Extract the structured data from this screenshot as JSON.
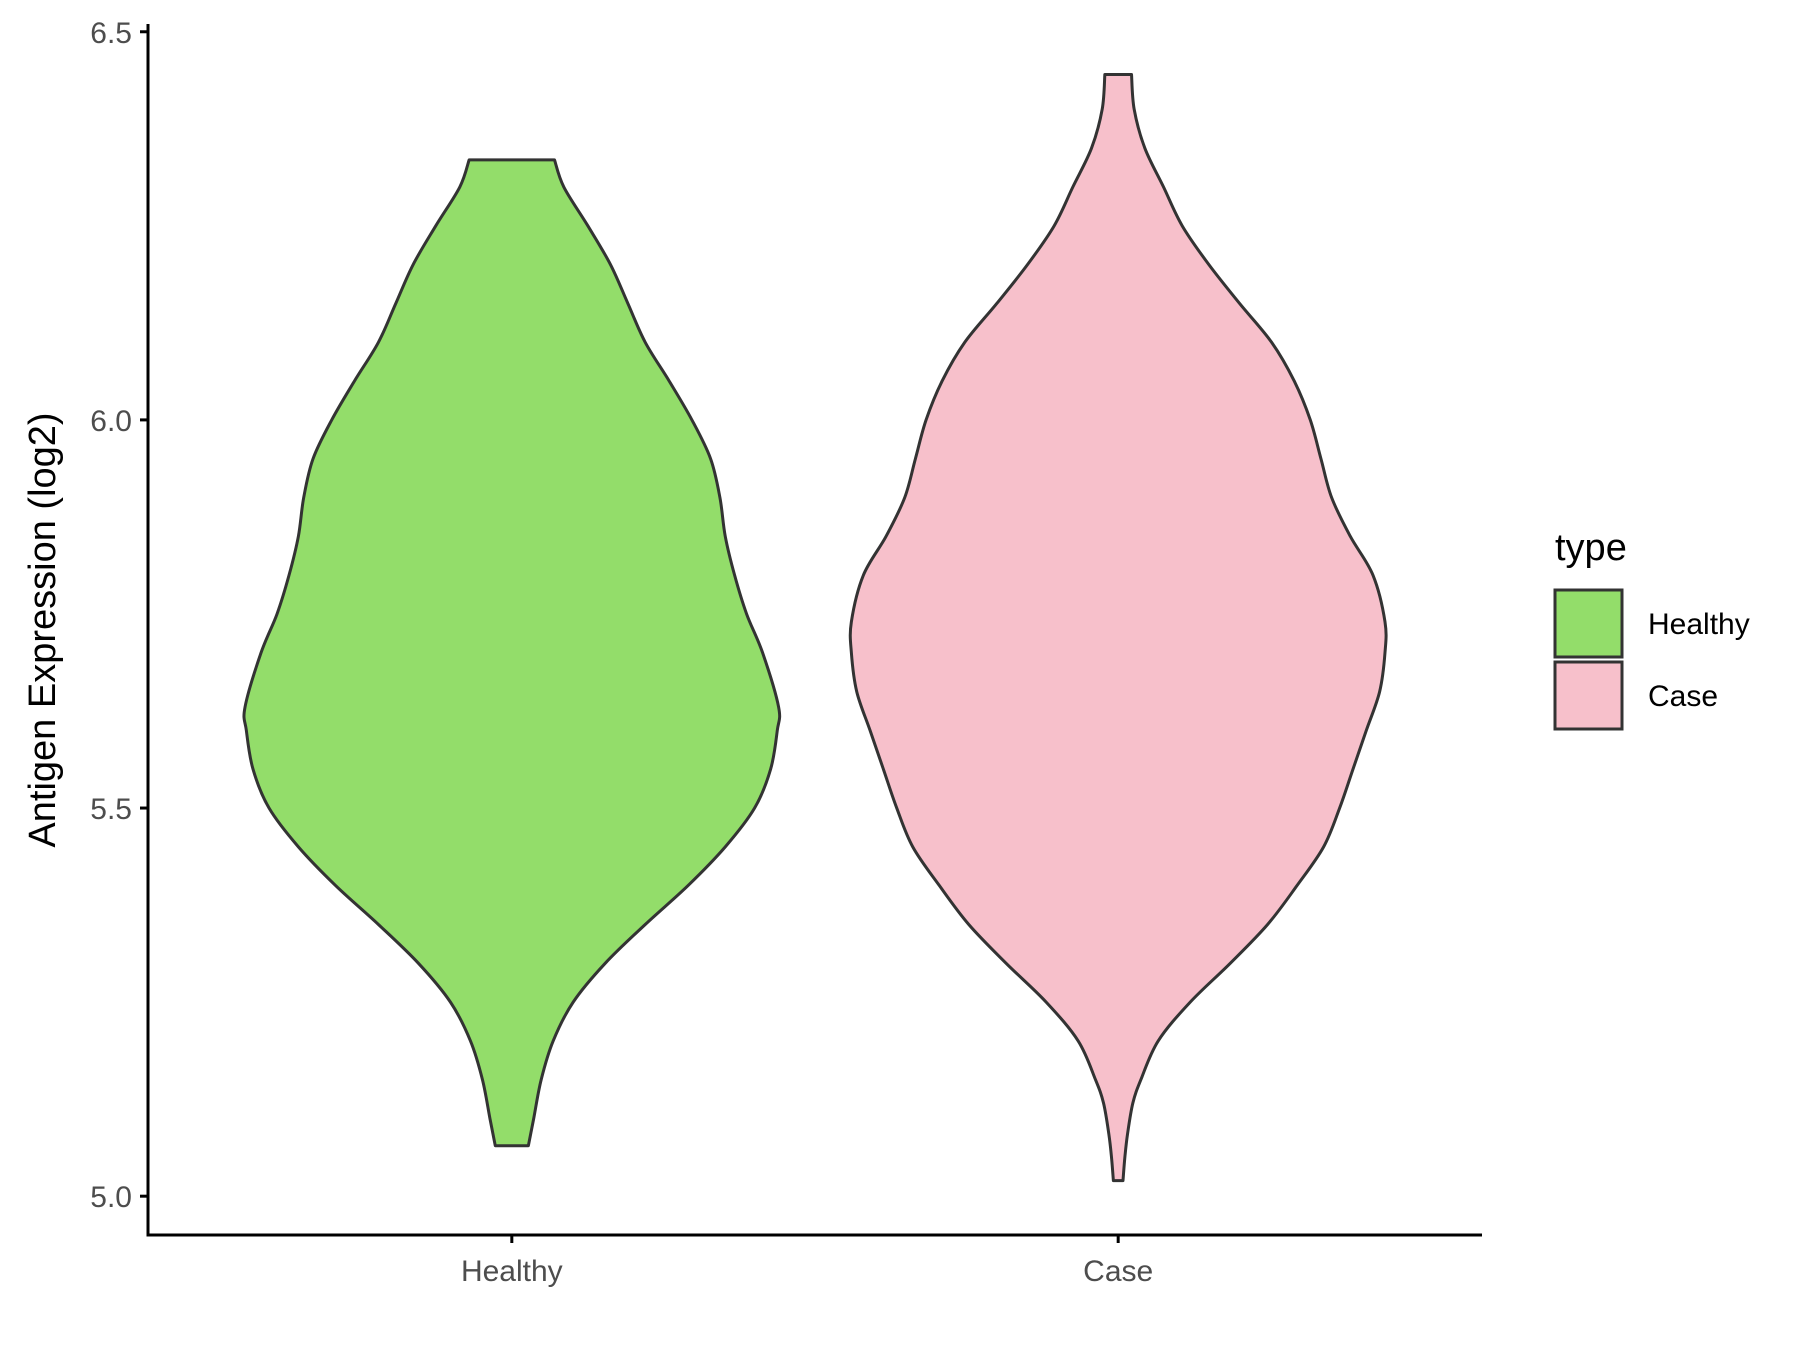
{
  "chart_data": {
    "type": "violin",
    "title": "",
    "xlabel": "",
    "ylabel": "Antigen Expression (log2)",
    "categories": [
      "Healthy",
      "Case"
    ],
    "ylim": [
      4.95,
      6.51
    ],
    "yticks": [
      "5.0",
      "5.5",
      "6.0",
      "6.5"
    ],
    "grid": false,
    "legend": {
      "title": "type",
      "placement": "right",
      "entries": [
        {
          "label": "Healthy",
          "color": "#93dd6a"
        },
        {
          "label": "Case",
          "color": "#f7c0cb"
        }
      ]
    },
    "series": [
      {
        "name": "Healthy",
        "color": "#93dd6a",
        "density": [
          [
            5.065,
            0.062
          ],
          [
            5.1,
            0.082
          ],
          [
            5.15,
            0.11
          ],
          [
            5.2,
            0.155
          ],
          [
            5.25,
            0.23
          ],
          [
            5.3,
            0.35
          ],
          [
            5.35,
            0.5
          ],
          [
            5.4,
            0.66
          ],
          [
            5.45,
            0.8
          ],
          [
            5.5,
            0.91
          ],
          [
            5.55,
            0.97
          ],
          [
            5.6,
            0.995
          ],
          [
            5.63,
            1.0
          ],
          [
            5.7,
            0.94
          ],
          [
            5.75,
            0.88
          ],
          [
            5.8,
            0.835
          ],
          [
            5.85,
            0.8
          ],
          [
            5.9,
            0.78
          ],
          [
            5.95,
            0.745
          ],
          [
            6.0,
            0.675
          ],
          [
            6.05,
            0.59
          ],
          [
            6.1,
            0.5
          ],
          [
            6.15,
            0.435
          ],
          [
            6.2,
            0.37
          ],
          [
            6.25,
            0.285
          ],
          [
            6.3,
            0.195
          ],
          [
            6.335,
            0.16
          ]
        ]
      },
      {
        "name": "Case",
        "color": "#f7c0cb",
        "density": [
          [
            5.02,
            0.018
          ],
          [
            5.05,
            0.025
          ],
          [
            5.08,
            0.035
          ],
          [
            5.12,
            0.055
          ],
          [
            5.15,
            0.085
          ],
          [
            5.2,
            0.15
          ],
          [
            5.25,
            0.27
          ],
          [
            5.3,
            0.42
          ],
          [
            5.35,
            0.56
          ],
          [
            5.4,
            0.67
          ],
          [
            5.45,
            0.77
          ],
          [
            5.5,
            0.83
          ],
          [
            5.55,
            0.88
          ],
          [
            5.6,
            0.93
          ],
          [
            5.65,
            0.98
          ],
          [
            5.7,
            1.0
          ],
          [
            5.74,
            1.0
          ],
          [
            5.8,
            0.955
          ],
          [
            5.85,
            0.87
          ],
          [
            5.9,
            0.8
          ],
          [
            5.95,
            0.76
          ],
          [
            6.0,
            0.72
          ],
          [
            6.05,
            0.66
          ],
          [
            6.1,
            0.575
          ],
          [
            6.15,
            0.455
          ],
          [
            6.2,
            0.34
          ],
          [
            6.25,
            0.24
          ],
          [
            6.3,
            0.17
          ],
          [
            6.35,
            0.1
          ],
          [
            6.4,
            0.06
          ],
          [
            6.445,
            0.05
          ]
        ]
      }
    ]
  }
}
